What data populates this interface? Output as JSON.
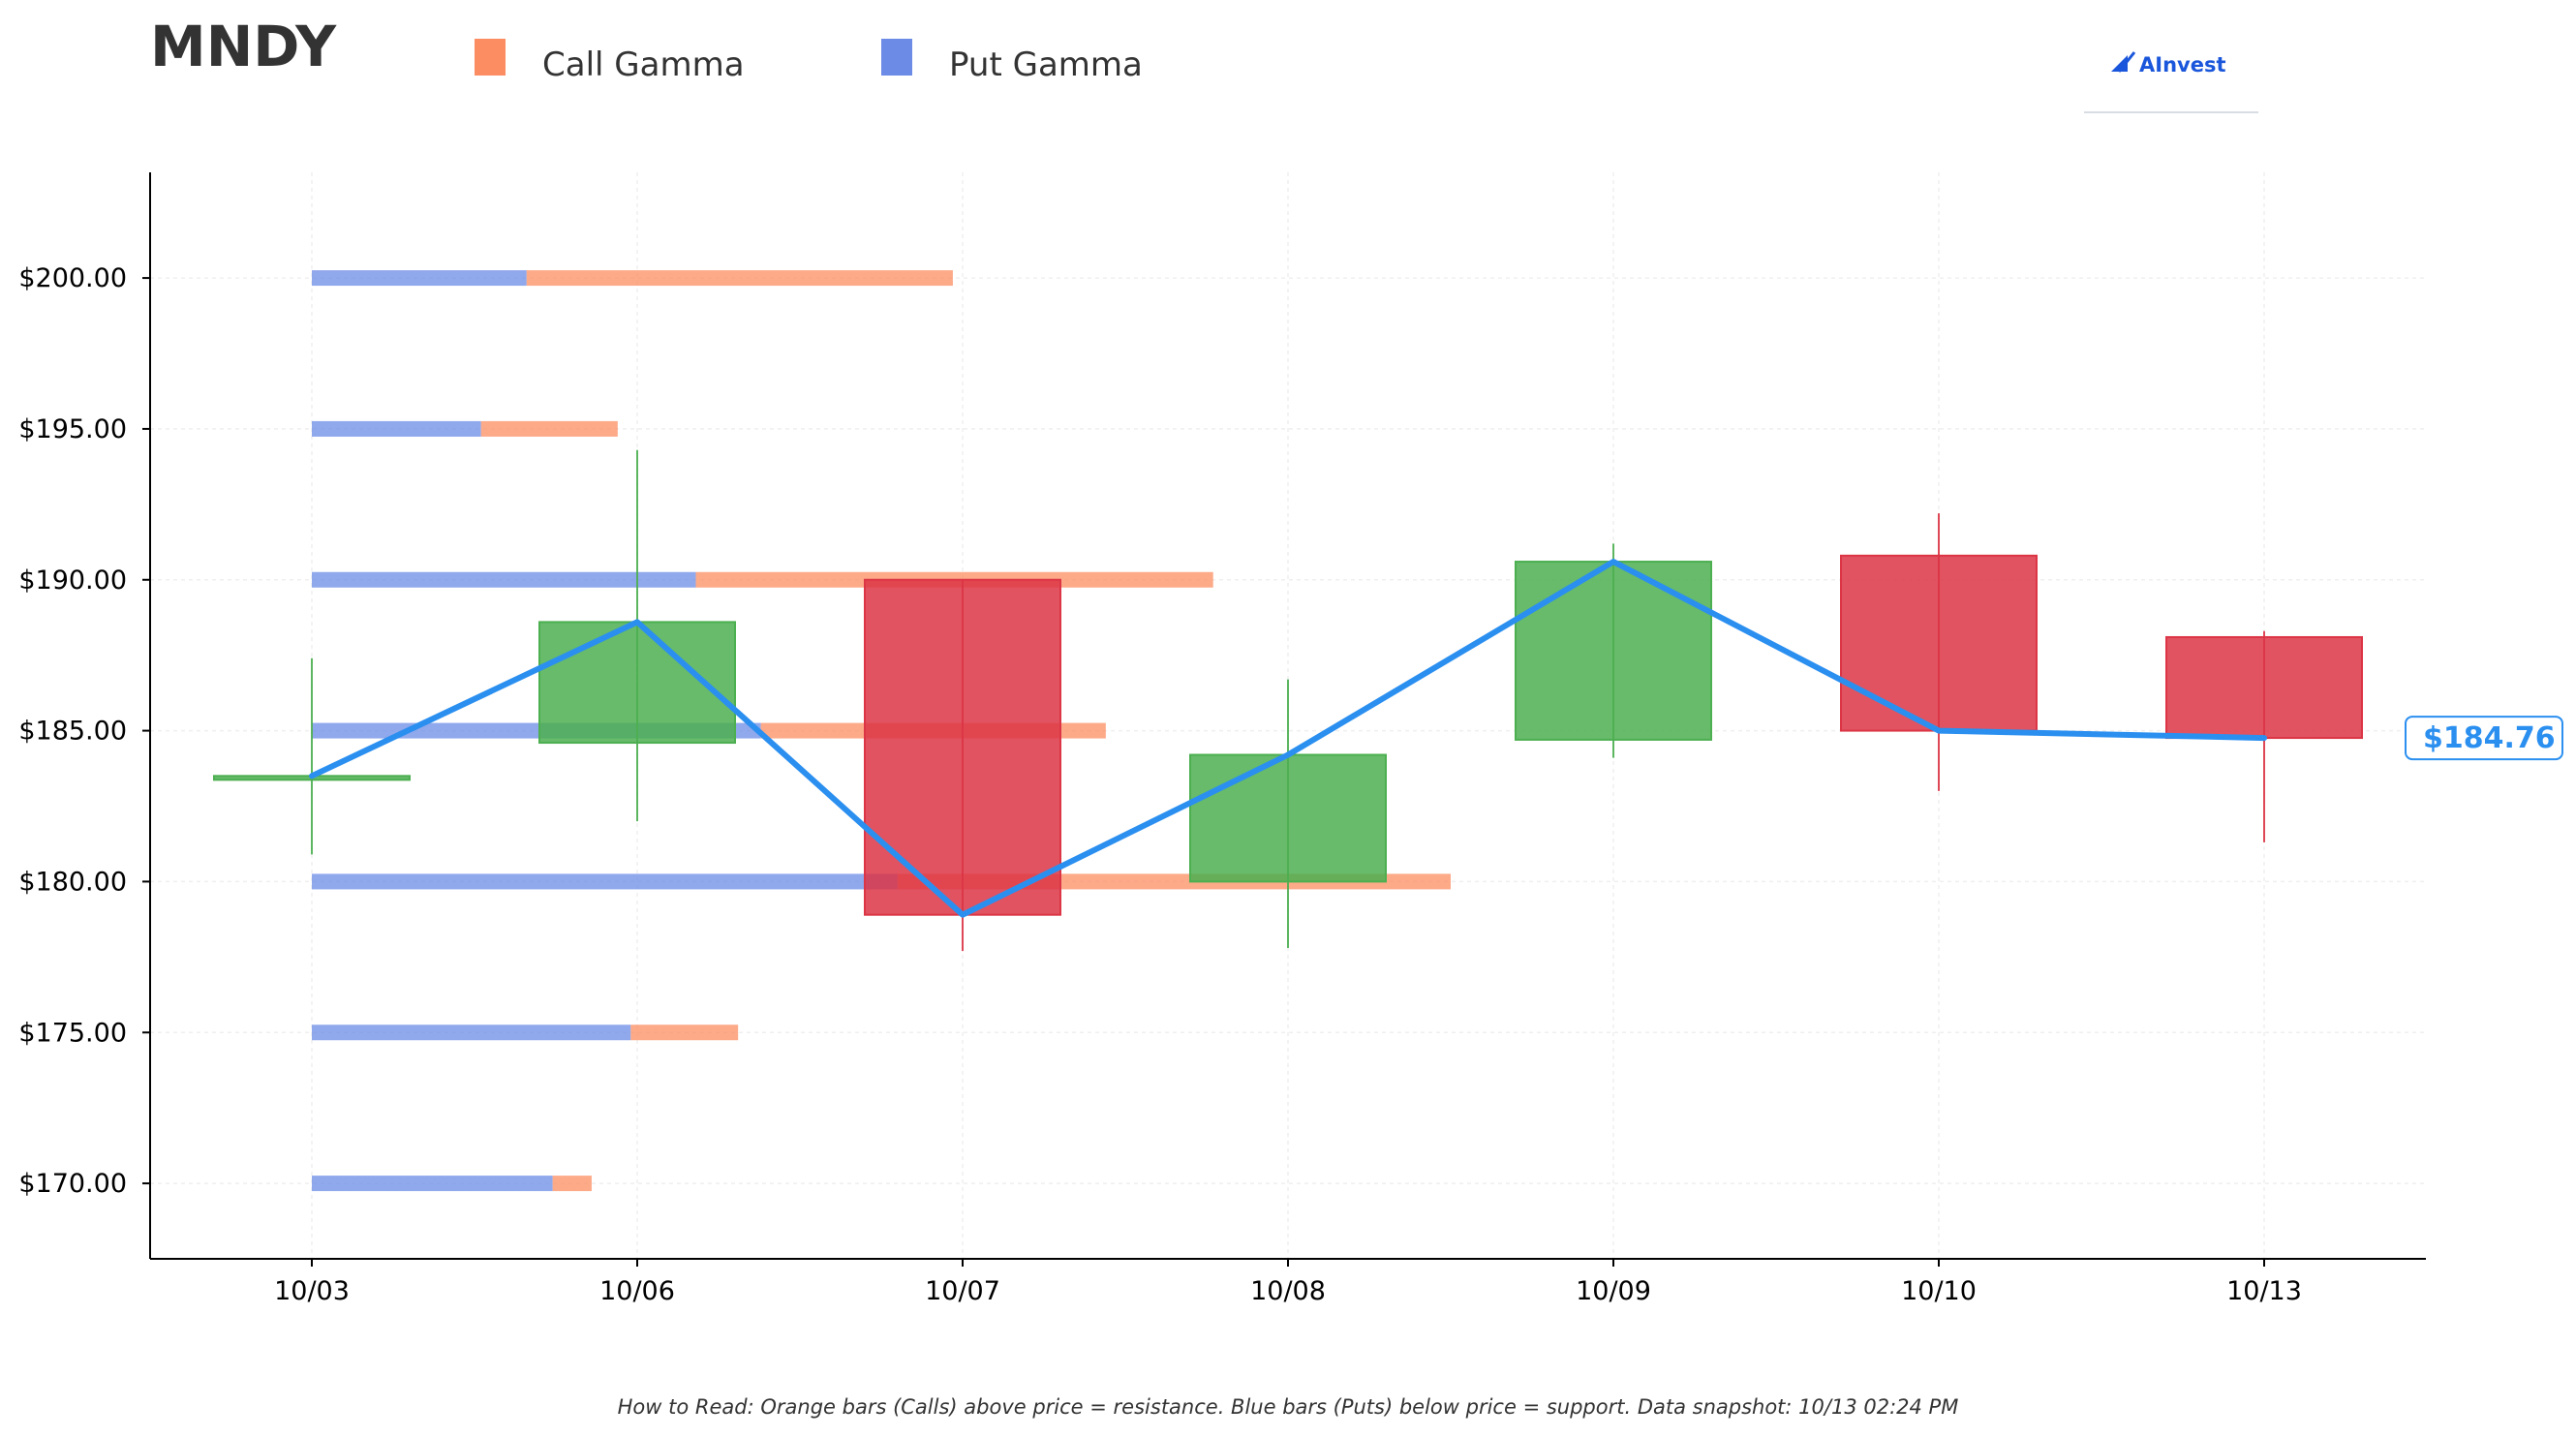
{
  "ticker": "MNDY",
  "brand": "AInvest",
  "footnote": "How to Read: Orange bars (Calls) above price = resistance. Blue bars (Puts) below price = support. Data snapshot: 10/13 02:24 PM",
  "legend": [
    {
      "label": "Call Gamma",
      "color": "#fc8d62"
    },
    {
      "label": "Put Gamma",
      "color": "#6b8be6"
    }
  ],
  "current_price_label": "$184.76",
  "colors": {
    "up": "#4caf50",
    "down": "#dc3545",
    "line": "#2b8ff0",
    "call": "#fc8d62",
    "put": "#6b8be6"
  },
  "chart_data": {
    "type": "candlestick",
    "title": "MNDY",
    "categories": [
      "10/03",
      "10/06",
      "10/07",
      "10/08",
      "10/09",
      "10/10",
      "10/13"
    ],
    "ylim": [
      167.5,
      203.5
    ],
    "yticks": [
      170,
      175,
      180,
      185,
      190,
      195,
      200
    ],
    "ytick_labels": [
      "$170.00",
      "$175.00",
      "$180.00",
      "$185.00",
      "$190.00",
      "$195.00",
      "$200.00"
    ],
    "grid": true,
    "legend_position": "top",
    "candles": [
      {
        "date": "10/03",
        "open": 183.4,
        "high": 187.4,
        "low": 180.9,
        "close": 183.5
      },
      {
        "date": "10/06",
        "open": 184.6,
        "high": 194.3,
        "low": 182.0,
        "close": 188.6
      },
      {
        "date": "10/07",
        "open": 190.0,
        "high": 190.0,
        "low": 177.7,
        "close": 178.9
      },
      {
        "date": "10/08",
        "open": 180.0,
        "high": 186.7,
        "low": 177.8,
        "close": 184.2
      },
      {
        "date": "10/09",
        "open": 184.7,
        "high": 191.2,
        "low": 184.1,
        "close": 190.6
      },
      {
        "date": "10/10",
        "open": 190.8,
        "high": 192.2,
        "low": 183.0,
        "close": 185.0
      },
      {
        "date": "10/13",
        "open": 188.1,
        "high": 188.3,
        "low": 181.3,
        "close": 184.76
      }
    ],
    "close_line": [
      183.5,
      188.6,
      178.9,
      184.2,
      190.6,
      185.0,
      184.76
    ],
    "gamma_levels": [
      {
        "strike": 200,
        "put": 0.66,
        "call": 1.31
      },
      {
        "strike": 195,
        "put": 0.52,
        "call": 0.42
      },
      {
        "strike": 190,
        "put": 1.18,
        "call": 1.59
      },
      {
        "strike": 185,
        "put": 1.38,
        "call": 1.06
      },
      {
        "strike": 180,
        "put": 1.8,
        "call": 1.7
      },
      {
        "strike": 175,
        "put": 0.98,
        "call": 0.33
      },
      {
        "strike": 170,
        "put": 0.74,
        "call": 0.12
      }
    ]
  }
}
